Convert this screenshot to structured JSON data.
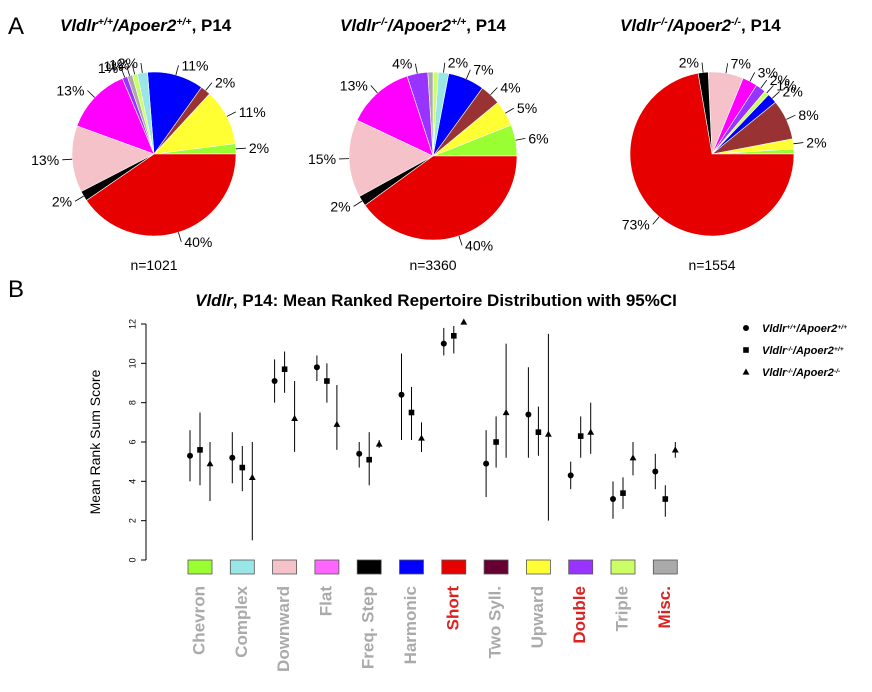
{
  "panel_labels": {
    "a": "A",
    "b": "B"
  },
  "chart_data": [
    {
      "type": "pie",
      "title": {
        "gene": "Vldlr",
        "sup1": "+/+",
        "mid": "/Apoer2",
        "sup2": "+/+",
        "tail": ", P14"
      },
      "n_label": "n=1021",
      "slices": [
        {
          "value": 2,
          "color": "#99ff33",
          "label": "2%"
        },
        {
          "value": 11,
          "color": "#ffff33",
          "label": "11%"
        },
        {
          "value": 2,
          "color": "#993333",
          "label": "2%"
        },
        {
          "value": 11,
          "color": "#0000ff",
          "label": "11%"
        },
        {
          "value": 2,
          "color": "#99e6e6",
          "label": "2%"
        },
        {
          "value": 1,
          "color": "#ccff66",
          "label": "1%"
        },
        {
          "value": 1,
          "color": "#aaaaaa",
          "label": "1%"
        },
        {
          "value": 1,
          "color": "#9933ff",
          "label": "1%"
        },
        {
          "value": 13,
          "color": "#ff00ff",
          "label": "13%"
        },
        {
          "value": 13,
          "color": "#f4c2c8",
          "label": "13%"
        },
        {
          "value": 2,
          "color": "#000000",
          "label": "2%"
        },
        {
          "value": 40,
          "color": "#e60000",
          "label": "40%"
        }
      ]
    },
    {
      "type": "pie",
      "title": {
        "gene": "Vldlr",
        "sup1": "-/-",
        "mid": "/Apoer2",
        "sup2": "+/+",
        "tail": ", P14"
      },
      "n_label": "n=3360",
      "slices": [
        {
          "value": 6,
          "color": "#99ff33",
          "label": "6%"
        },
        {
          "value": 5,
          "color": "#ffff33",
          "label": "5%"
        },
        {
          "value": 4,
          "color": "#993333",
          "label": "4%"
        },
        {
          "value": 7,
          "color": "#0000ff",
          "label": "7%"
        },
        {
          "value": 2,
          "color": "#99e6e6",
          "label": "2%"
        },
        {
          "value": 1,
          "color": "#ccff66",
          "label": ""
        },
        {
          "value": 1,
          "color": "#aaaaaa",
          "label": ""
        },
        {
          "value": 4,
          "color": "#9933ff",
          "label": "4%"
        },
        {
          "value": 13,
          "color": "#ff00ff",
          "label": "13%"
        },
        {
          "value": 15,
          "color": "#f4c2c8",
          "label": "15%"
        },
        {
          "value": 2,
          "color": "#000000",
          "label": "2%"
        },
        {
          "value": 40,
          "color": "#e60000",
          "label": "40%"
        }
      ]
    },
    {
      "type": "pie",
      "title": {
        "gene": "Vldlr",
        "sup1": "-/-",
        "mid": "/Apoer2",
        "sup2": "-/-",
        "tail": ", P14"
      },
      "n_label": "n=1554",
      "slices": [
        {
          "value": 1,
          "color": "#99ff33",
          "label": ""
        },
        {
          "value": 2,
          "color": "#ffff33",
          "label": "2%"
        },
        {
          "value": 8,
          "color": "#993333",
          "label": "8%"
        },
        {
          "value": 2,
          "color": "#0000ff",
          "label": "2%"
        },
        {
          "value": 1,
          "color": "#ccff66",
          "label": "1%"
        },
        {
          "value": 2,
          "color": "#9933ff",
          "label": "2%"
        },
        {
          "value": 3,
          "color": "#ff00ff",
          "label": "3%"
        },
        {
          "value": 7,
          "color": "#f4c2c8",
          "label": "7%"
        },
        {
          "value": 2,
          "color": "#000000",
          "label": "2%"
        },
        {
          "value": 73,
          "color": "#e60000",
          "label": "73%"
        }
      ]
    },
    {
      "type": "scatter",
      "title": {
        "gene": "Vldlr",
        "rest": ", P14: Mean Ranked Repertoire Distribution with 95%CI"
      },
      "ylabel": "Mean Rank Sum Score",
      "ylim": [
        0,
        12
      ],
      "yticks": [
        "0",
        "2",
        "4",
        "6",
        "8",
        "10",
        "12"
      ],
      "legend": [
        {
          "shape": "circle",
          "gene": "Vldlr",
          "sup1": "+/+",
          "mid": "/Apoer2",
          "sup2": "+/+"
        },
        {
          "shape": "square",
          "gene": "Vldlr",
          "sup1": "-/-",
          "mid": "/Apoer2",
          "sup2": "+/+"
        },
        {
          "shape": "triangle",
          "gene": "Vldlr",
          "sup1": "-/-",
          "mid": "/Apoer2",
          "sup2": "-/-"
        }
      ],
      "legend_position": "top-right",
      "categories": [
        {
          "name": "Chevron",
          "color": "#99ff33",
          "highlight": false
        },
        {
          "name": "Complex",
          "color": "#99e6e6",
          "highlight": false
        },
        {
          "name": "Downward",
          "color": "#f4c2c8",
          "highlight": false
        },
        {
          "name": "Flat",
          "color": "#ff66ff",
          "highlight": false
        },
        {
          "name": "Freq. Step",
          "color": "#000000",
          "highlight": false
        },
        {
          "name": "Harmonic",
          "color": "#0000ff",
          "highlight": false
        },
        {
          "name": "Short",
          "color": "#e60000",
          "highlight": true
        },
        {
          "name": "Two Syll.",
          "color": "#660033",
          "highlight": false
        },
        {
          "name": "Upward",
          "color": "#ffff33",
          "highlight": false
        },
        {
          "name": "Double",
          "color": "#9933ff",
          "highlight": true
        },
        {
          "name": "Triple",
          "color": "#ccff66",
          "highlight": false
        },
        {
          "name": "Misc.",
          "color": "#aaaaaa",
          "highlight": true
        }
      ],
      "series": [
        {
          "shape": "circle",
          "values": [
            {
              "mean": 5.3,
              "lo": 4.0,
              "hi": 6.6
            },
            {
              "mean": 5.2,
              "lo": 3.9,
              "hi": 6.5
            },
            {
              "mean": 9.1,
              "lo": 8.0,
              "hi": 10.2
            },
            {
              "mean": 9.8,
              "lo": 9.1,
              "hi": 10.4
            },
            {
              "mean": 5.4,
              "lo": 4.7,
              "hi": 6.0
            },
            {
              "mean": 8.4,
              "lo": 6.1,
              "hi": 10.5
            },
            {
              "mean": 11.0,
              "lo": 10.4,
              "hi": 11.8
            },
            {
              "mean": 4.9,
              "lo": 3.2,
              "hi": 6.6
            },
            {
              "mean": 7.4,
              "lo": 5.2,
              "hi": 9.8
            },
            {
              "mean": 4.3,
              "lo": 3.6,
              "hi": 5.0
            },
            {
              "mean": 3.1,
              "lo": 2.1,
              "hi": 4.0
            },
            {
              "mean": 4.5,
              "lo": 3.6,
              "hi": 5.4
            }
          ]
        },
        {
          "shape": "square",
          "values": [
            {
              "mean": 5.6,
              "lo": 3.8,
              "hi": 7.5
            },
            {
              "mean": 4.7,
              "lo": 3.5,
              "hi": 5.8
            },
            {
              "mean": 9.7,
              "lo": 8.5,
              "hi": 10.6
            },
            {
              "mean": 9.1,
              "lo": 8.0,
              "hi": 10.0
            },
            {
              "mean": 5.1,
              "lo": 3.8,
              "hi": 6.5
            },
            {
              "mean": 7.5,
              "lo": 6.1,
              "hi": 8.8
            },
            {
              "mean": 11.4,
              "lo": 10.5,
              "hi": 11.9
            },
            {
              "mean": 6.0,
              "lo": 4.7,
              "hi": 7.3
            },
            {
              "mean": 6.5,
              "lo": 5.3,
              "hi": 7.8
            },
            {
              "mean": 6.3,
              "lo": 5.2,
              "hi": 7.3
            },
            {
              "mean": 3.4,
              "lo": 2.6,
              "hi": 4.2
            },
            {
              "mean": 3.1,
              "lo": 2.2,
              "hi": 3.8
            }
          ]
        },
        {
          "shape": "triangle",
          "values": [
            {
              "mean": 4.9,
              "lo": 3.0,
              "hi": 6.0
            },
            {
              "mean": 4.2,
              "lo": 1.0,
              "hi": 6.0
            },
            {
              "mean": 7.2,
              "lo": 5.5,
              "hi": 9.1
            },
            {
              "mean": 6.9,
              "lo": 5.6,
              "hi": 8.9
            },
            {
              "mean": 5.9,
              "lo": 5.7,
              "hi": 6.1
            },
            {
              "mean": 6.2,
              "lo": 5.5,
              "hi": 7.0
            },
            {
              "mean": 12.1,
              "lo": 12.1,
              "hi": 12.1
            },
            {
              "mean": 7.5,
              "lo": 5.2,
              "hi": 11.0
            },
            {
              "mean": 6.4,
              "lo": 2.0,
              "hi": 11.5
            },
            {
              "mean": 6.5,
              "lo": 5.4,
              "hi": 8.0
            },
            {
              "mean": 5.2,
              "lo": 4.3,
              "hi": 6.0
            },
            {
              "mean": 5.6,
              "lo": 5.2,
              "hi": 6.0
            }
          ]
        }
      ]
    }
  ]
}
